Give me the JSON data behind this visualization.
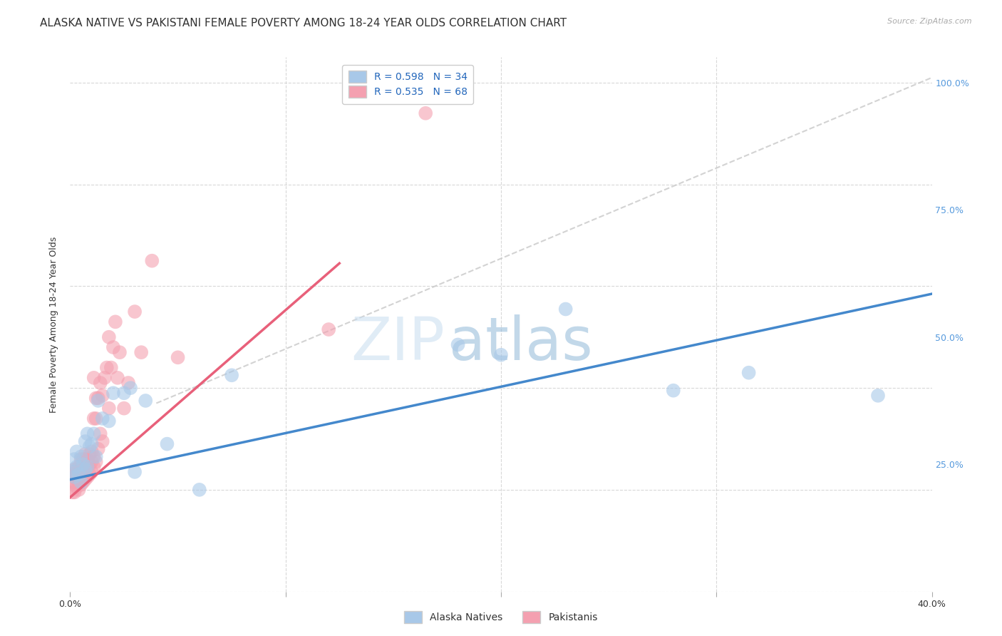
{
  "title": "ALASKA NATIVE VS PAKISTANI FEMALE POVERTY AMONG 18-24 YEAR OLDS CORRELATION CHART",
  "source": "Source: ZipAtlas.com",
  "ylabel": "Female Poverty Among 18-24 Year Olds",
  "xlim": [
    0.0,
    0.4
  ],
  "ylim": [
    0.0,
    1.05
  ],
  "xticks": [
    0.0,
    0.1,
    0.2,
    0.3,
    0.4
  ],
  "xticklabels": [
    "0.0%",
    "",
    "",
    "",
    "40.0%"
  ],
  "yticks_right": [
    0.25,
    0.5,
    0.75,
    1.0
  ],
  "yticklabels_right": [
    "25.0%",
    "50.0%",
    "75.0%",
    "100.0%"
  ],
  "background_color": "#ffffff",
  "grid_color": "#d8d8d8",
  "watermark_zip": "ZIP",
  "watermark_atlas": "atlas",
  "alaska_color": "#a8c8e8",
  "pakistan_color": "#f4a0b0",
  "alaska_line_color": "#4488cc",
  "pakistan_line_color": "#e8607a",
  "dashed_line_color": "#c8c8c8",
  "R_alaska": 0.598,
  "N_alaska": 34,
  "R_pakistan": 0.535,
  "N_pakistan": 68,
  "alaska_line_x0": 0.0,
  "alaska_line_y0": 0.22,
  "alaska_line_x1": 0.4,
  "alaska_line_y1": 0.585,
  "pakistan_line_x0": 0.0,
  "pakistan_line_y0": 0.185,
  "pakistan_line_x1": 0.125,
  "pakistan_line_y1": 0.645,
  "dashed_line_x0": 0.04,
  "dashed_line_y0": 0.37,
  "dashed_line_x1": 0.4,
  "dashed_line_y1": 1.01,
  "alaska_scatter_x": [
    0.001,
    0.002,
    0.002,
    0.003,
    0.003,
    0.004,
    0.005,
    0.005,
    0.006,
    0.007,
    0.007,
    0.008,
    0.008,
    0.009,
    0.01,
    0.011,
    0.012,
    0.013,
    0.015,
    0.018,
    0.02,
    0.025,
    0.028,
    0.03,
    0.035,
    0.045,
    0.06,
    0.075,
    0.18,
    0.2,
    0.23,
    0.28,
    0.315,
    0.375
  ],
  "alaska_scatter_y": [
    0.235,
    0.225,
    0.26,
    0.245,
    0.275,
    0.23,
    0.215,
    0.265,
    0.25,
    0.24,
    0.295,
    0.245,
    0.31,
    0.285,
    0.29,
    0.31,
    0.265,
    0.375,
    0.34,
    0.335,
    0.39,
    0.39,
    0.4,
    0.235,
    0.375,
    0.29,
    0.2,
    0.425,
    0.485,
    0.465,
    0.555,
    0.395,
    0.43,
    0.385
  ],
  "pakistan_scatter_x": [
    0.001,
    0.001,
    0.001,
    0.002,
    0.002,
    0.002,
    0.002,
    0.003,
    0.003,
    0.003,
    0.003,
    0.004,
    0.004,
    0.004,
    0.004,
    0.004,
    0.005,
    0.005,
    0.005,
    0.005,
    0.006,
    0.006,
    0.006,
    0.006,
    0.007,
    0.007,
    0.007,
    0.007,
    0.007,
    0.008,
    0.008,
    0.008,
    0.009,
    0.009,
    0.009,
    0.01,
    0.01,
    0.01,
    0.011,
    0.011,
    0.011,
    0.011,
    0.012,
    0.012,
    0.012,
    0.013,
    0.013,
    0.014,
    0.014,
    0.015,
    0.015,
    0.016,
    0.017,
    0.018,
    0.018,
    0.019,
    0.02,
    0.021,
    0.022,
    0.023,
    0.025,
    0.027,
    0.03,
    0.033,
    0.038,
    0.05,
    0.12,
    0.165
  ],
  "pakistan_scatter_y": [
    0.195,
    0.215,
    0.23,
    0.195,
    0.215,
    0.225,
    0.24,
    0.205,
    0.22,
    0.23,
    0.24,
    0.2,
    0.215,
    0.225,
    0.235,
    0.245,
    0.21,
    0.225,
    0.24,
    0.26,
    0.215,
    0.23,
    0.24,
    0.26,
    0.22,
    0.235,
    0.25,
    0.26,
    0.27,
    0.225,
    0.245,
    0.26,
    0.23,
    0.25,
    0.27,
    0.235,
    0.255,
    0.275,
    0.245,
    0.265,
    0.34,
    0.42,
    0.255,
    0.34,
    0.38,
    0.28,
    0.38,
    0.31,
    0.41,
    0.295,
    0.385,
    0.42,
    0.44,
    0.36,
    0.5,
    0.44,
    0.48,
    0.53,
    0.42,
    0.47,
    0.36,
    0.41,
    0.55,
    0.47,
    0.65,
    0.46,
    0.515,
    0.94
  ],
  "title_fontsize": 11,
  "label_fontsize": 9,
  "tick_fontsize": 9,
  "legend_fontsize": 10
}
